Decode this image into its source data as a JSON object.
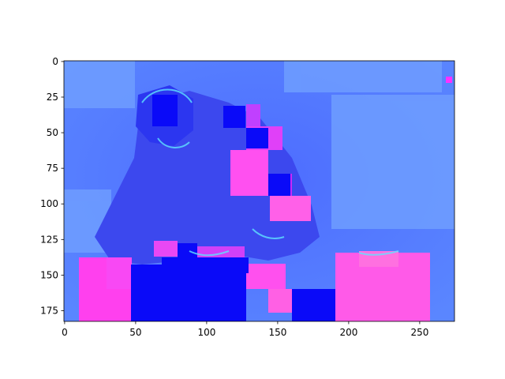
{
  "chart_data": {
    "type": "heatmap",
    "title": "",
    "xlabel": "",
    "ylabel": "",
    "image_width": 275,
    "image_height": 183,
    "xlim": [
      -0.5,
      274.5
    ],
    "ylim": [
      182.5,
      -0.5
    ],
    "y_axis_inverted": true,
    "grid": false,
    "colormap": [
      "#0a10ff",
      "#3a52ff",
      "#5a7cff",
      "#7aa0ff",
      "#b040ff",
      "#ff30ff",
      "#ff55e6"
    ],
    "x_ticks": [
      0,
      50,
      100,
      150,
      200,
      250
    ],
    "x_tick_labels": [
      "0",
      "50",
      "100",
      "150",
      "200",
      "250"
    ],
    "y_ticks": [
      0,
      25,
      50,
      75,
      100,
      125,
      150,
      175
    ],
    "y_tick_labels": [
      "0",
      "25",
      "50",
      "75",
      "100",
      "125",
      "150",
      "175"
    ]
  }
}
